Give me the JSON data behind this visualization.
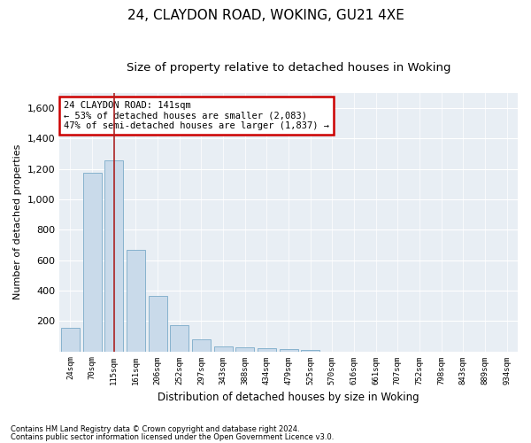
{
  "title1": "24, CLAYDON ROAD, WOKING, GU21 4XE",
  "title2": "Size of property relative to detached houses in Woking",
  "xlabel": "Distribution of detached houses by size in Woking",
  "ylabel": "Number of detached properties",
  "categories": [
    "24sqm",
    "70sqm",
    "115sqm",
    "161sqm",
    "206sqm",
    "252sqm",
    "297sqm",
    "343sqm",
    "388sqm",
    "434sqm",
    "479sqm",
    "525sqm",
    "570sqm",
    "616sqm",
    "661sqm",
    "707sqm",
    "752sqm",
    "798sqm",
    "843sqm",
    "889sqm",
    "934sqm"
  ],
  "values": [
    155,
    1175,
    1255,
    670,
    365,
    170,
    80,
    30,
    25,
    20,
    15,
    10,
    0,
    0,
    0,
    0,
    0,
    0,
    0,
    0,
    0
  ],
  "bar_color": "#c9daea",
  "bar_edge_color": "#7aaac8",
  "highlight_bar_index": 2,
  "annotation_text": "24 CLAYDON ROAD: 141sqm\n← 53% of detached houses are smaller (2,083)\n47% of semi-detached houses are larger (1,837) →",
  "annotation_box_facecolor": "#ffffff",
  "annotation_box_edgecolor": "#cc0000",
  "ylim": [
    0,
    1700
  ],
  "yticks": [
    0,
    200,
    400,
    600,
    800,
    1000,
    1200,
    1400,
    1600
  ],
  "bg_color": "#ffffff",
  "plot_bg_color": "#e8eef4",
  "grid_color": "#ffffff",
  "footnote1": "Contains HM Land Registry data © Crown copyright and database right 2024.",
  "footnote2": "Contains public sector information licensed under the Open Government Licence v3.0.",
  "title1_fontsize": 11,
  "title2_fontsize": 9.5
}
